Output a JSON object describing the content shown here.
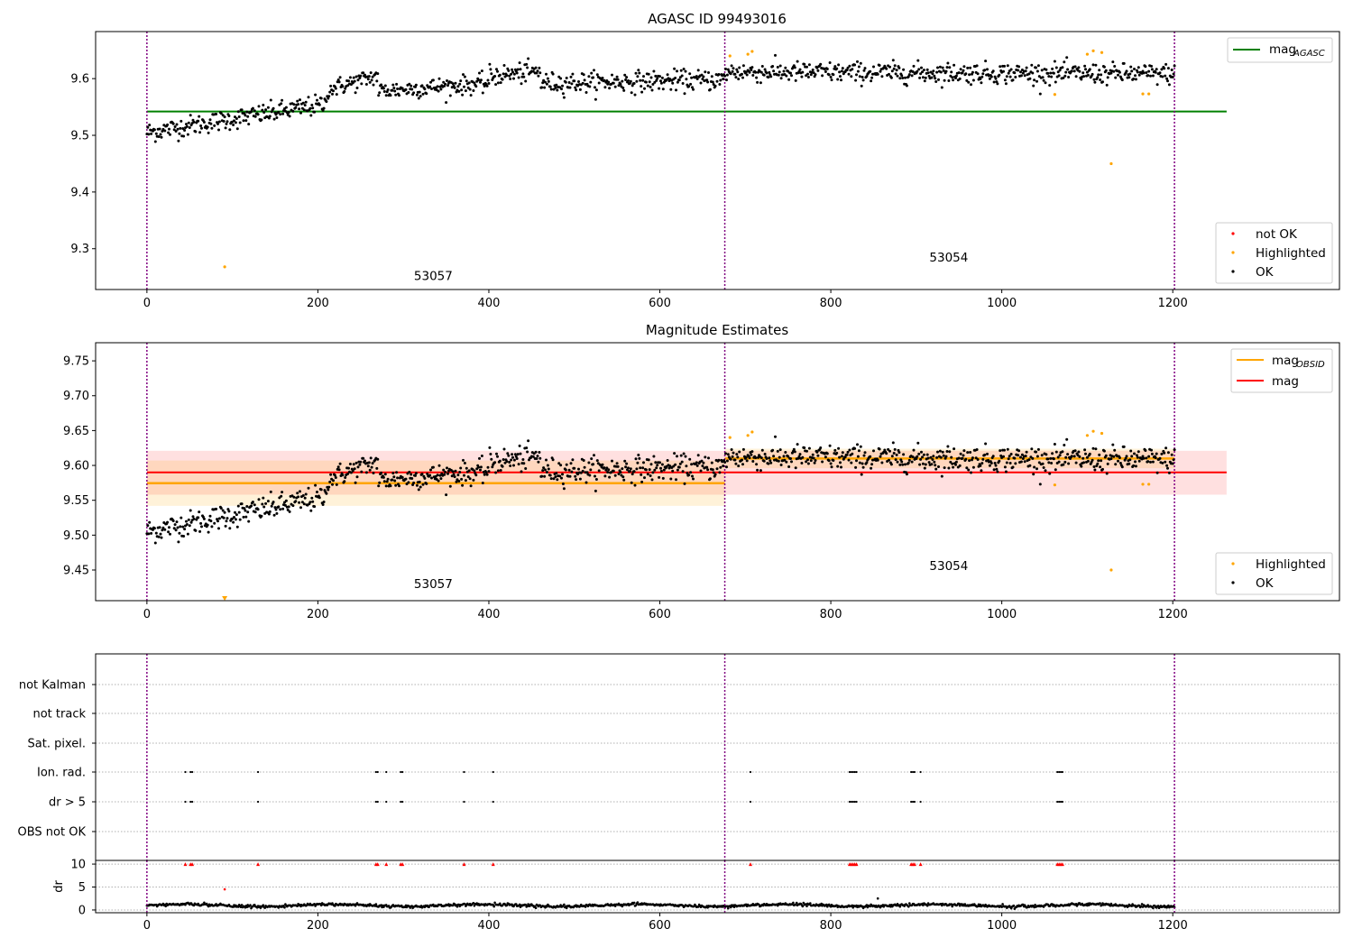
{
  "colors": {
    "ok": "#000000",
    "highlighted": "#ffa500",
    "not_ok": "#ff0000",
    "mag_agasc": "#008000",
    "mag_obsid": "#ffa500",
    "mag": "#ff0000",
    "obs_divider": "#800080"
  },
  "chart_data": [
    {
      "type": "scatter",
      "title": "AGASC ID 99493016",
      "xlim": [
        -60,
        1395
      ],
      "ylim": [
        9.228,
        9.683
      ],
      "xticks": [
        "0",
        "200",
        "400",
        "600",
        "800",
        "1000",
        "1200"
      ],
      "yticks": [
        "9.3",
        "9.4",
        "9.5",
        "9.6"
      ],
      "grid": false,
      "legend_upper": {
        "placement": "top-right",
        "entries": [
          {
            "label_main": "mag",
            "label_sub": "AGASC",
            "color": "#008000"
          }
        ]
      },
      "legend_lower": {
        "placement": "bottom-right",
        "entries": [
          {
            "label": "not OK",
            "color": "#ff0000"
          },
          {
            "label": "Highlighted",
            "color": "#ffa500"
          },
          {
            "label": "OK",
            "color": "#000000"
          }
        ]
      },
      "obs_boundaries": [
        0,
        676,
        1202
      ],
      "obs_labels": [
        {
          "text": "53057",
          "x": 335,
          "y": 9.245
        },
        {
          "text": "53054",
          "x": 938,
          "y": 9.277
        }
      ],
      "mag_agasc": {
        "value": 9.542,
        "x_range": [
          0,
          1263
        ]
      },
      "ok_segments": [
        {
          "x_start": 0,
          "x_end": 210,
          "y_start": 9.505,
          "y_end": 9.555,
          "scatter": 0.012
        },
        {
          "x_start": 210,
          "x_end": 270,
          "y_start": 9.58,
          "y_end": 9.605,
          "scatter": 0.011
        },
        {
          "x_start": 270,
          "x_end": 400,
          "y_start": 9.578,
          "y_end": 9.592,
          "scatter": 0.011
        },
        {
          "x_start": 400,
          "x_end": 460,
          "y_start": 9.605,
          "y_end": 9.612,
          "scatter": 0.012
        },
        {
          "x_start": 460,
          "x_end": 676,
          "y_start": 9.592,
          "y_end": 9.598,
          "scatter": 0.012
        },
        {
          "x_start": 676,
          "x_end": 1202,
          "y_start": 9.612,
          "y_end": 9.608,
          "scatter": 0.012
        }
      ],
      "highlighted": [
        [
          91,
          9.268
        ],
        [
          682,
          9.64
        ],
        [
          703,
          9.643
        ],
        [
          708,
          9.648
        ],
        [
          1062,
          9.572
        ],
        [
          1100,
          9.643
        ],
        [
          1107,
          9.649
        ],
        [
          1117,
          9.646
        ],
        [
          1128,
          9.45
        ],
        [
          1165,
          9.573
        ],
        [
          1172,
          9.573
        ]
      ],
      "not_ok": []
    },
    {
      "type": "scatter",
      "title": "Magnitude Estimates",
      "xlim": [
        -60,
        1395
      ],
      "ylim": [
        9.406,
        9.776
      ],
      "xticks": [
        "0",
        "200",
        "400",
        "600",
        "800",
        "1000",
        "1200"
      ],
      "yticks": [
        "9.45",
        "9.50",
        "9.55",
        "9.60",
        "9.65",
        "9.70",
        "9.75"
      ],
      "grid": false,
      "legend_upper": {
        "placement": "top-right",
        "entries": [
          {
            "label_main": "mag",
            "label_sub": "OBSID",
            "color": "#ffa500"
          },
          {
            "label_main": "mag",
            "label_sub": "",
            "color": "#ff0000"
          }
        ]
      },
      "legend_lower": {
        "placement": "bottom-right",
        "entries": [
          {
            "label": "Highlighted",
            "color": "#ffa500"
          },
          {
            "label": "OK",
            "color": "#000000"
          }
        ]
      },
      "obs_boundaries": [
        0,
        676,
        1202
      ],
      "obs_labels": [
        {
          "text": "53057",
          "x": 335,
          "y": 9.424
        },
        {
          "text": "53054",
          "x": 938,
          "y": 9.45
        }
      ],
      "mag": {
        "value": 9.59,
        "band": [
          9.558,
          9.621
        ],
        "x_range": [
          0,
          1263
        ]
      },
      "mag_obsid": [
        {
          "x_range": [
            0,
            676
          ],
          "value": 9.5745,
          "band": [
            9.542,
            9.607
          ]
        },
        {
          "x_range": [
            676,
            1202
          ],
          "value": 9.61,
          "band": [
            9.596,
            9.624
          ]
        }
      ],
      "ok_segments": [
        {
          "x_start": 0,
          "x_end": 210,
          "y_start": 9.505,
          "y_end": 9.555,
          "scatter": 0.012
        },
        {
          "x_start": 210,
          "x_end": 270,
          "y_start": 9.58,
          "y_end": 9.605,
          "scatter": 0.011
        },
        {
          "x_start": 270,
          "x_end": 400,
          "y_start": 9.578,
          "y_end": 9.592,
          "scatter": 0.011
        },
        {
          "x_start": 400,
          "x_end": 460,
          "y_start": 9.605,
          "y_end": 9.612,
          "scatter": 0.012
        },
        {
          "x_start": 460,
          "x_end": 676,
          "y_start": 9.592,
          "y_end": 9.598,
          "scatter": 0.012
        },
        {
          "x_start": 676,
          "x_end": 1202,
          "y_start": 9.612,
          "y_end": 9.608,
          "scatter": 0.012
        }
      ],
      "highlighted": [
        [
          682,
          9.64
        ],
        [
          703,
          9.643
        ],
        [
          708,
          9.648
        ],
        [
          1062,
          9.572
        ],
        [
          1100,
          9.643
        ],
        [
          1107,
          9.649
        ],
        [
          1117,
          9.646
        ],
        [
          1128,
          9.45
        ],
        [
          1165,
          9.573
        ],
        [
          1172,
          9.573
        ]
      ],
      "off_scale_marker": {
        "x": 91,
        "y": 9.406
      }
    },
    {
      "type": "scatter",
      "title": "",
      "xlim": [
        -60,
        1395
      ],
      "flag_rows": [
        "not Kalman",
        "not track",
        "Sat. pixel.",
        "Ion. rad.",
        "dr > 5",
        "OBS not OK"
      ],
      "flag_x": {
        "Ion. rad.": [
          45,
          51,
          53,
          130,
          268,
          270,
          280,
          297,
          299,
          371,
          405,
          706,
          822,
          824,
          826,
          828,
          830,
          894,
          896,
          898,
          905,
          1065,
          1067,
          1069,
          1071
        ],
        "dr > 5": [
          45,
          51,
          53,
          130,
          268,
          270,
          280,
          297,
          299,
          371,
          405,
          706,
          822,
          824,
          826,
          828,
          830,
          894,
          896,
          898,
          905,
          1065,
          1067,
          1069,
          1071
        ]
      },
      "obs_boundaries": [
        0,
        676,
        1202
      ],
      "dr": {
        "ylim": [
          -0.6,
          10.8
        ],
        "yticks": [
          "0",
          "5",
          "10"
        ],
        "ylabel": "dr",
        "xticks": [
          "0",
          "200",
          "400",
          "600",
          "800",
          "1000",
          "1200"
        ],
        "baseline_dr": 1.0,
        "amplitude": 0.4,
        "high_points_x": [
          45,
          51,
          53,
          130,
          268,
          270,
          280,
          297,
          299,
          371,
          405,
          706,
          822,
          824,
          826,
          828,
          830,
          894,
          896,
          898,
          905,
          1065,
          1067,
          1069,
          1071
        ],
        "high_value": 10,
        "extra_points": [
          [
            91,
            4.5,
            "red"
          ],
          [
            855,
            2.5,
            "black"
          ]
        ]
      }
    }
  ]
}
